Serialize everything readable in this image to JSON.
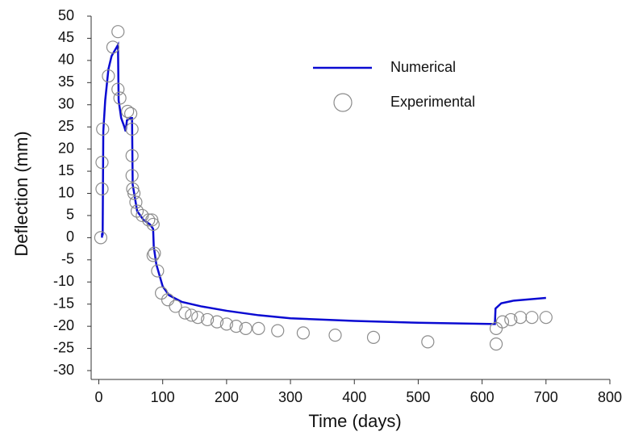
{
  "chart_data": {
    "type": "line",
    "xlabel": "Time (days)",
    "ylabel": "Deflection (mm)",
    "xlim": [
      -12,
      800
    ],
    "ylim": [
      -32,
      50
    ],
    "xticks": [
      0,
      100,
      200,
      300,
      400,
      500,
      600,
      700,
      800
    ],
    "yticks": [
      -30,
      -25,
      -20,
      -15,
      -10,
      -5,
      0,
      5,
      10,
      15,
      20,
      25,
      30,
      35,
      40,
      45,
      50
    ],
    "series": [
      {
        "name": "Numerical",
        "type": "line",
        "color": "#0a0ad2",
        "x": [
          5,
          5,
          6,
          7,
          10,
          15,
          20,
          30,
          31,
          35,
          40,
          42,
          44,
          50,
          52,
          53,
          60,
          70,
          80,
          85,
          86,
          90,
          100,
          110,
          130,
          160,
          200,
          250,
          300,
          400,
          500,
          620,
          621,
          630,
          650,
          700
        ],
        "values": [
          0,
          1,
          0.5,
          24,
          31,
          38,
          41,
          43.5,
          31,
          27,
          25,
          24,
          26.5,
          27,
          27,
          12,
          6,
          4,
          3,
          2,
          -2,
          -6,
          -11,
          -13,
          -14.5,
          -15.5,
          -16.5,
          -17.5,
          -18.2,
          -18.8,
          -19.2,
          -19.5,
          -16,
          -14.8,
          -14.2,
          -13.6
        ]
      },
      {
        "name": "Experimental",
        "type": "scatter",
        "color": "#8c8c8c",
        "x": [
          3,
          5,
          5,
          6,
          15,
          22,
          30,
          30,
          33,
          45,
          50,
          52,
          52,
          52,
          53,
          55,
          58,
          60,
          68,
          78,
          83,
          85,
          85,
          87,
          92,
          98,
          108,
          120,
          135,
          145,
          155,
          170,
          185,
          200,
          215,
          230,
          250,
          280,
          320,
          370,
          430,
          515,
          622,
          622,
          632,
          645,
          660,
          678,
          700
        ],
        "values": [
          0,
          11,
          17,
          24.5,
          36.5,
          43,
          46.5,
          33.5,
          31.5,
          28.5,
          28,
          24.5,
          18.5,
          14,
          11,
          10,
          8,
          6,
          5,
          4,
          4,
          3,
          -4,
          -3.5,
          -7.5,
          -12.5,
          -14,
          -15.5,
          -17,
          -17.5,
          -18,
          -18.5,
          -19,
          -19.5,
          -20,
          -20.5,
          -20.5,
          -21,
          -21.5,
          -22,
          -22.5,
          -23.5,
          -24,
          -20.5,
          -19,
          -18.5,
          -18,
          -18,
          -18
        ]
      }
    ]
  }
}
